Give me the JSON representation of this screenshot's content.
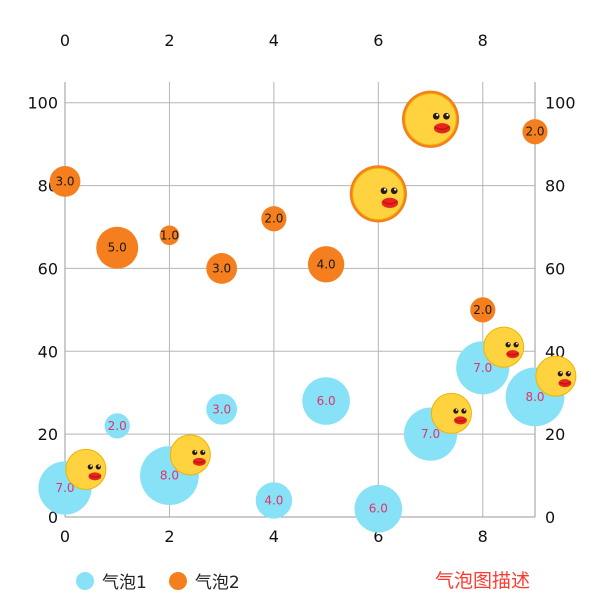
{
  "chart_data": {
    "type": "bubble",
    "x_axis": {
      "range": [
        0,
        9
      ],
      "ticks": [
        0,
        2,
        4,
        6,
        8
      ],
      "tick_labels": [
        "0",
        "2",
        "4",
        "6",
        "8"
      ],
      "position": "top-and-bottom"
    },
    "y_axis": {
      "range": [
        0,
        105
      ],
      "ticks": [
        0,
        20,
        40,
        60,
        80,
        100
      ],
      "tick_labels": [
        "0",
        "20",
        "40",
        "60",
        "80",
        "100"
      ],
      "position": "left-and-right"
    },
    "grid": true,
    "legend_placement": "bottom-left",
    "description": "气泡图描述",
    "description_color": "#ff3b30",
    "series": [
      {
        "name": "气泡1",
        "color": "#87e2f7",
        "label_color": "#e0336b",
        "points": [
          {
            "x": 0,
            "y": 7,
            "size": 7.0,
            "label": "7.0"
          },
          {
            "x": 1,
            "y": 22,
            "size": 2.0,
            "label": "2.0"
          },
          {
            "x": 2,
            "y": 10,
            "size": 8.0,
            "label": "8.0"
          },
          {
            "x": 3,
            "y": 26,
            "size": 3.0,
            "label": "3.0"
          },
          {
            "x": 4,
            "y": 4,
            "size": 4.0,
            "label": "4.0"
          },
          {
            "x": 5,
            "y": 28,
            "size": 6.0,
            "label": "6.0"
          },
          {
            "x": 6,
            "y": 2,
            "size": 6.0,
            "label": "6.0"
          },
          {
            "x": 7,
            "y": 20,
            "size": 7.0,
            "label": "7.0"
          },
          {
            "x": 8,
            "y": 36,
            "size": 7.0,
            "label": "7.0"
          },
          {
            "x": 9,
            "y": 29,
            "size": 8.0,
            "label": "8.0"
          }
        ]
      },
      {
        "name": "气泡2",
        "color": "#f57f1e",
        "label_color": "#1a1a1a",
        "points": [
          {
            "x": 0,
            "y": 81,
            "size": 3.0,
            "label": "3.0"
          },
          {
            "x": 1,
            "y": 65,
            "size": 5.0,
            "label": "5.0"
          },
          {
            "x": 2,
            "y": 68,
            "size": 1.0,
            "label": "1.0"
          },
          {
            "x": 3,
            "y": 60,
            "size": 3.0,
            "label": "3.0"
          },
          {
            "x": 4,
            "y": 72,
            "size": 2.0,
            "label": "2.0"
          },
          {
            "x": 5,
            "y": 61,
            "size": 4.0,
            "label": "4.0"
          },
          {
            "x": 6,
            "y": 78,
            "size": 7.0,
            "label": "",
            "icon": "duck-face-icon"
          },
          {
            "x": 7,
            "y": 96,
            "size": 7.0,
            "label": "",
            "icon": "duck-face-icon"
          },
          {
            "x": 8,
            "y": 50,
            "size": 2.0,
            "label": "2.0"
          },
          {
            "x": 9,
            "y": 93,
            "size": 2.0,
            "label": "2.0"
          }
        ]
      }
    ],
    "decorations": [
      {
        "icon": "duck-face-icon",
        "x": 0.4,
        "y": 11.5
      },
      {
        "icon": "duck-face-icon",
        "x": 2.4,
        "y": 15
      },
      {
        "icon": "duck-face-icon",
        "x": 7.4,
        "y": 25
      },
      {
        "icon": "duck-face-icon",
        "x": 8.4,
        "y": 41
      },
      {
        "icon": "duck-face-icon",
        "x": 9.4,
        "y": 34
      }
    ]
  }
}
